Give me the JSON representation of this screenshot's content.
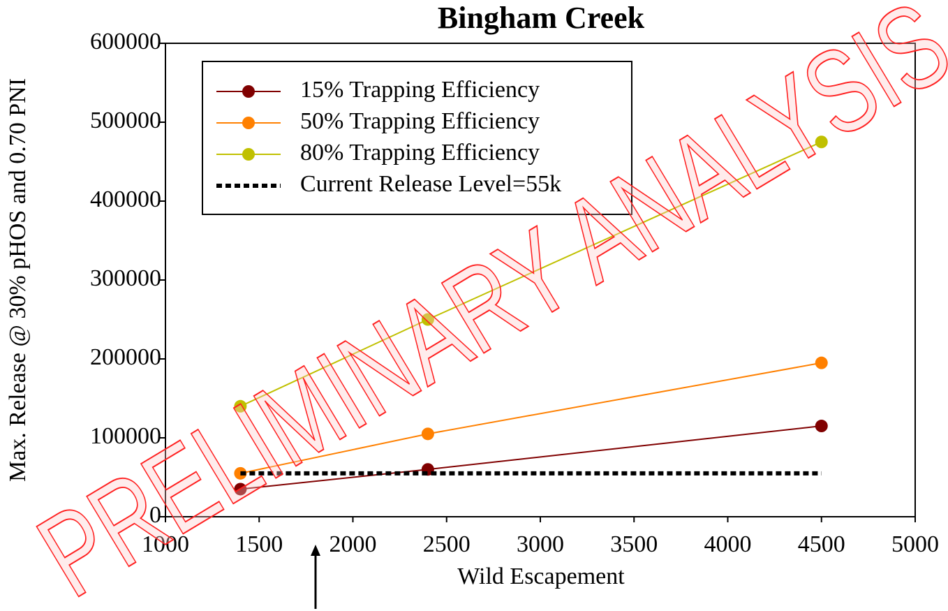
{
  "chart_data": {
    "type": "line",
    "title": "Bingham Creek",
    "xlabel": "Wild Escapement",
    "ylabel": "Max. Release @ 30% pHOS and 0.70 PNI",
    "watermark": "PRELIMINARY ANALYSIS",
    "x": [
      1400,
      2400,
      4500
    ],
    "series": [
      {
        "name": "15% Trapping Efficiency",
        "color": "#800000",
        "values": [
          35000,
          60000,
          115000
        ]
      },
      {
        "name": "50% Trapping Efficiency",
        "color": "#ff8000",
        "values": [
          55000,
          105000,
          195000
        ]
      },
      {
        "name": "80% Trapping Efficiency",
        "color": "#c0c000",
        "values": [
          140000,
          250000,
          475000
        ]
      },
      {
        "name": "Current Release Level=55k",
        "color": "#000000",
        "dash": true,
        "values": [
          55000,
          55000,
          55000
        ]
      }
    ],
    "xlim": [
      1000,
      5000
    ],
    "xticks": [
      1000,
      1500,
      2000,
      2500,
      3000,
      3500,
      4000,
      4500,
      5000
    ],
    "ylim": [
      0,
      600000
    ],
    "yticks": [
      0,
      100000,
      200000,
      300000,
      400000,
      500000,
      600000
    ],
    "grid": false,
    "legend": "upper left"
  }
}
